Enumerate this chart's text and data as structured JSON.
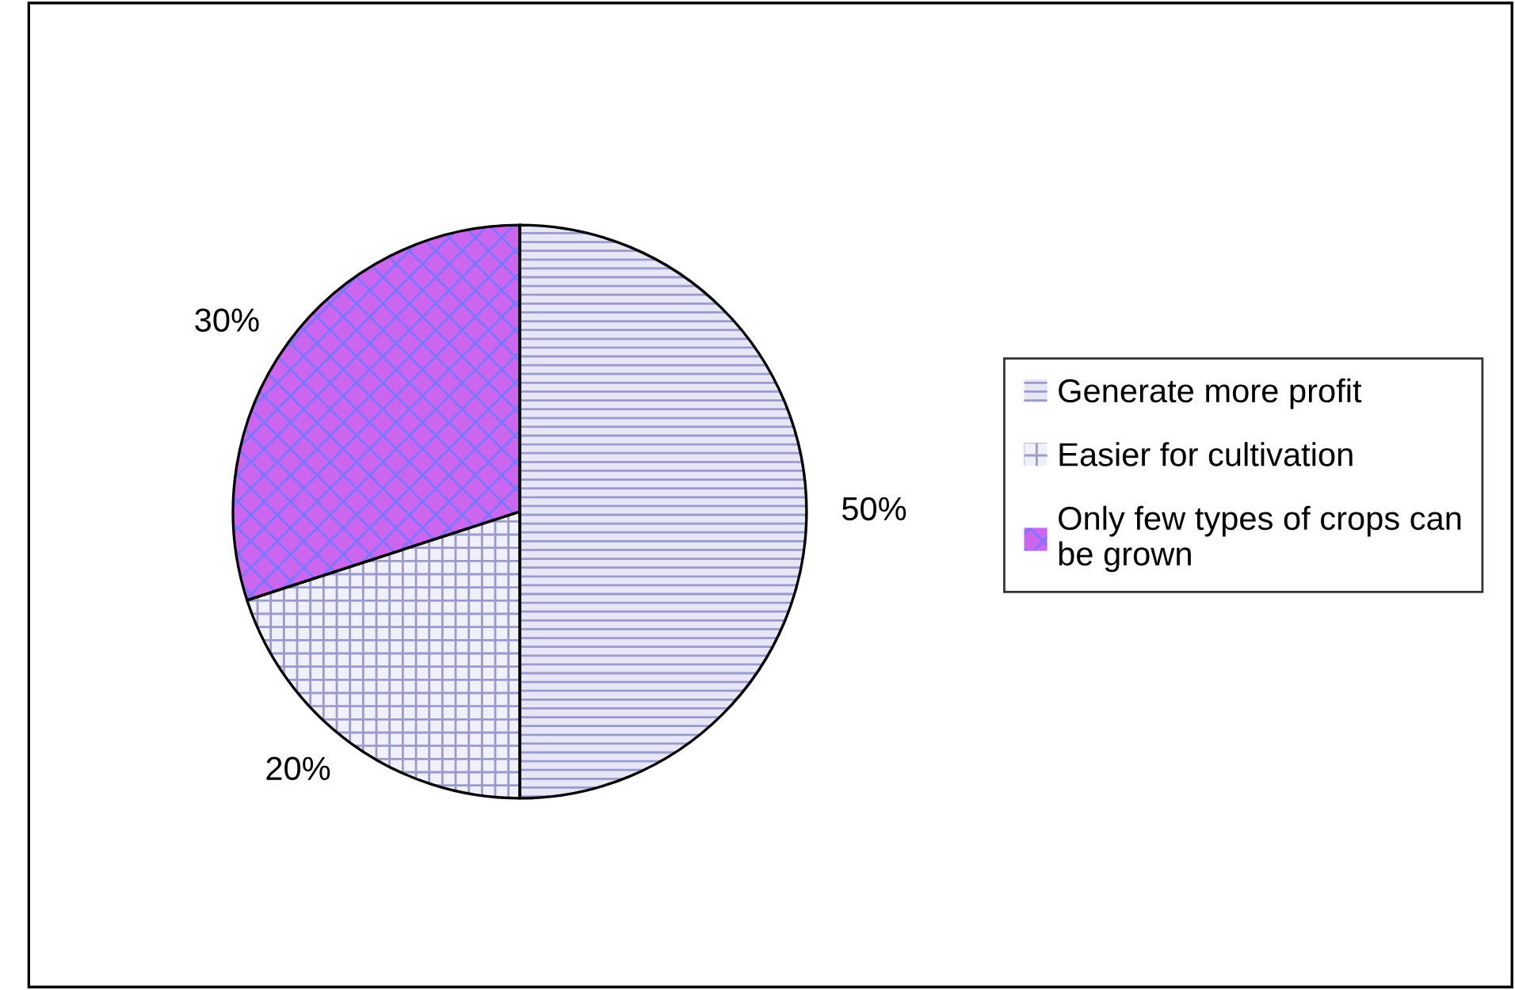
{
  "chart_data": {
    "type": "pie",
    "categories": [
      "Generate more profit",
      "Easier for cultivation",
      "Only few types of crops can be grown"
    ],
    "values": [
      50,
      20,
      30
    ],
    "colors": [
      "#e6e6f7",
      "#f0f0fa",
      "#cc66ee"
    ],
    "value_labels": [
      "50%",
      "20%",
      "30%"
    ],
    "legend": "right"
  }
}
